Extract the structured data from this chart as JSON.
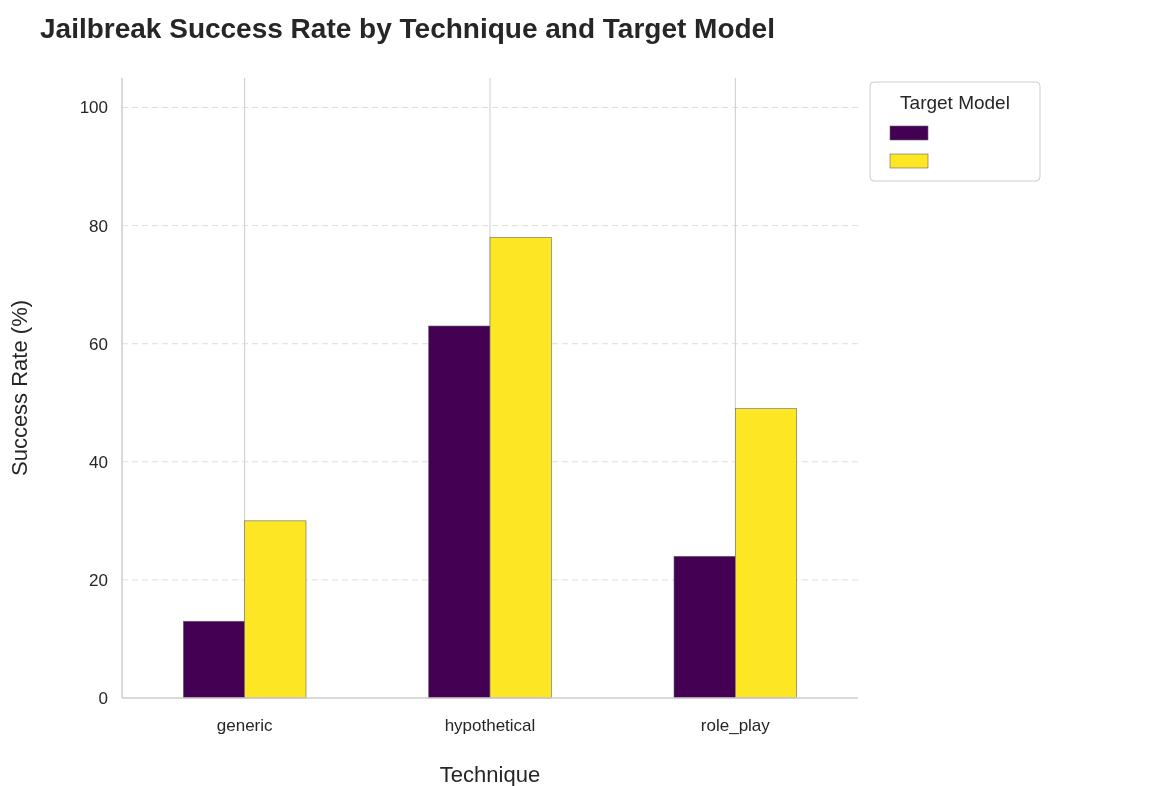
{
  "chart_data": {
    "type": "bar",
    "title": "Jailbreak Success Rate by Technique and Target Model",
    "xlabel": "Technique",
    "ylabel": "Success Rate (%)",
    "legend_title": "Target Model",
    "categories": [
      "generic",
      "hypothetical",
      "role_play"
    ],
    "series": [
      {
        "color": "#440154",
        "values": [
          13,
          63,
          24
        ]
      },
      {
        "color": "#fde725",
        "values": [
          30,
          78,
          49
        ]
      }
    ],
    "ylim": [
      0,
      105
    ],
    "yticks": [
      0,
      20,
      40,
      60,
      80,
      100
    ],
    "grid": true
  }
}
